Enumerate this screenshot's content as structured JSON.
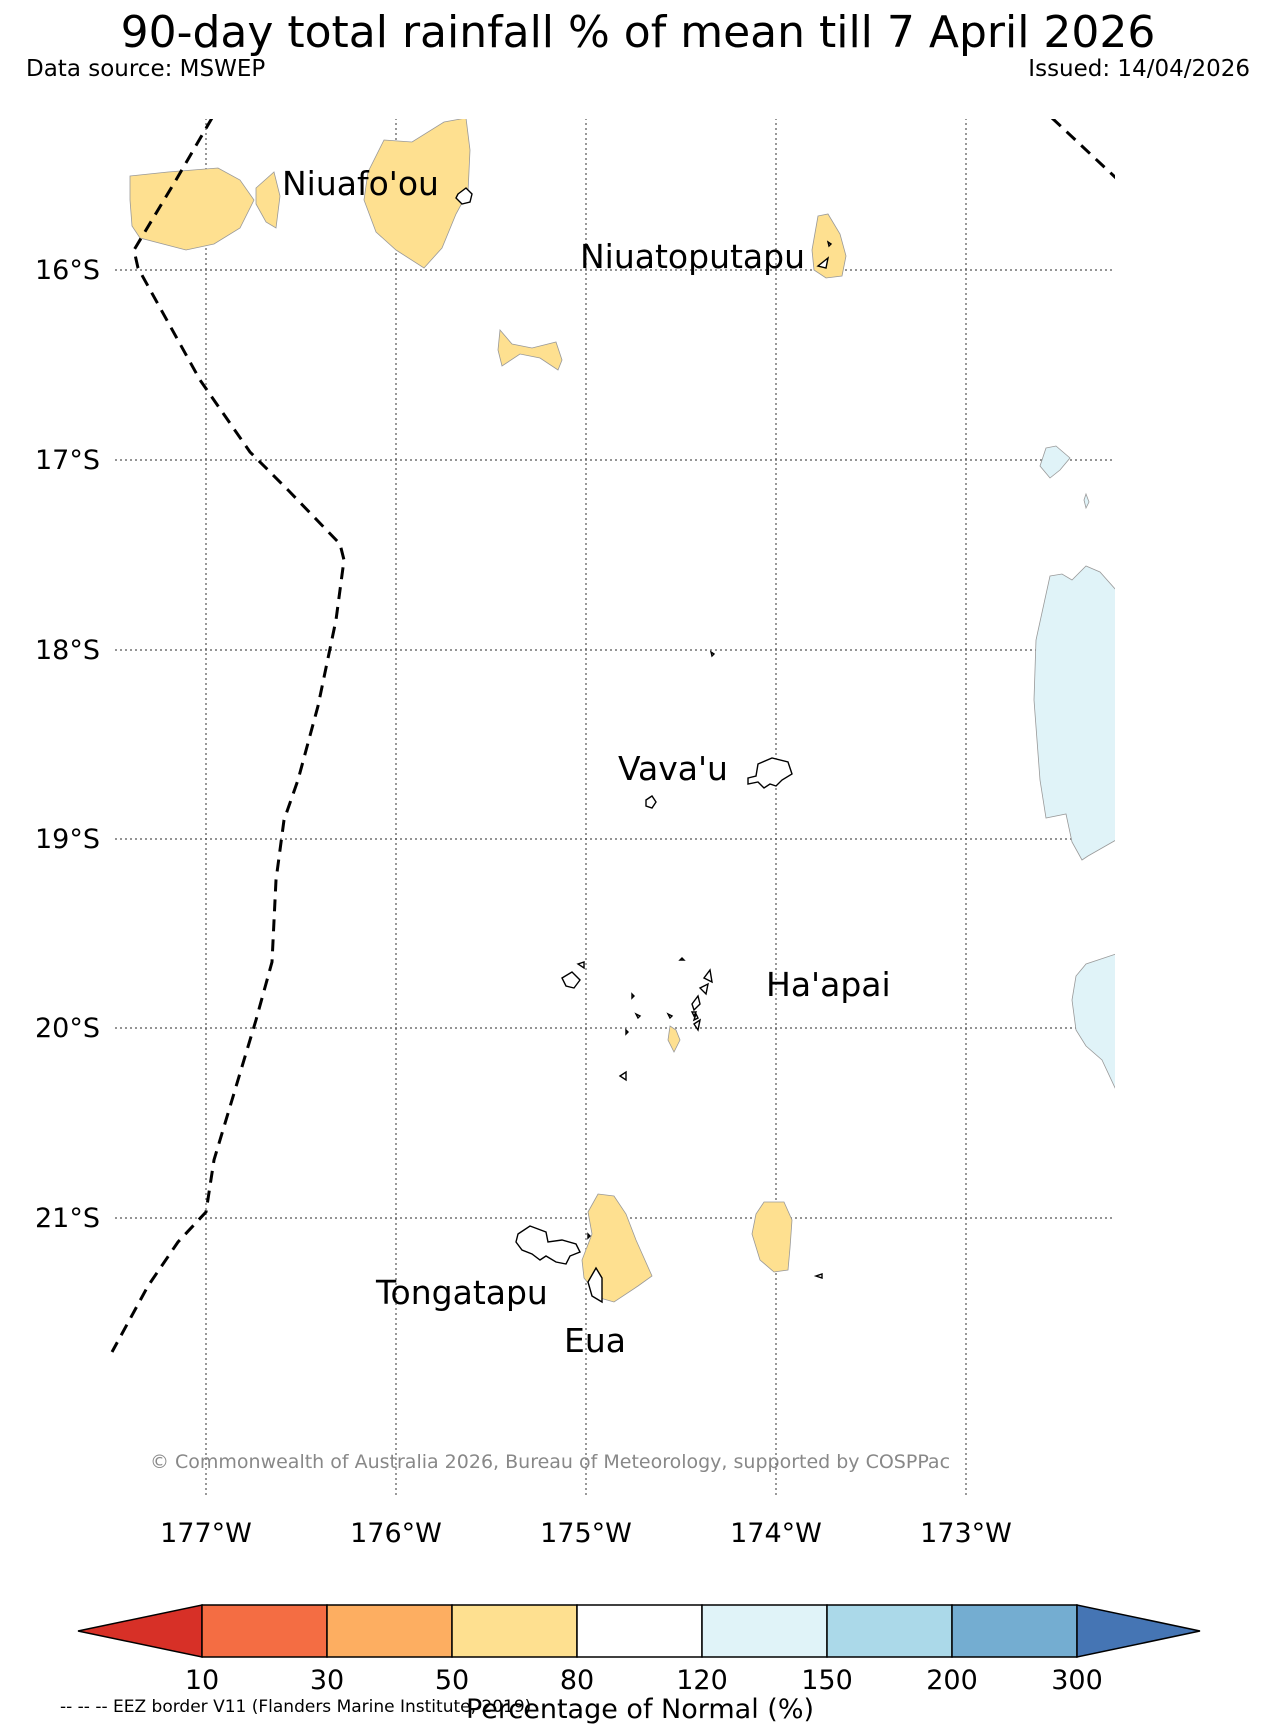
{
  "header": {
    "title": "90-day total rainfall % of mean till 7 April 2026",
    "data_source": "Data source: MSWEP",
    "issued": "Issued: 14/04/2026"
  },
  "map": {
    "labels": {
      "niuafoou": "Niuafo'ou",
      "niuatoputapu": "Niuatoputapu",
      "vavau": "Vava'u",
      "haapai": "Ha'apai",
      "tongatapu": "Tongatapu",
      "eua": "Eua"
    },
    "lat_ticks": [
      "16°S",
      "17°S",
      "18°S",
      "19°S",
      "20°S",
      "21°S"
    ],
    "lon_ticks": [
      "177°W",
      "176°W",
      "175°W",
      "174°W",
      "173°W"
    ],
    "copyright": "© Commonwealth of Australia 2026, Bureau of Meteorology, supported by COSPPac",
    "eez_note": "-- -- -- EEZ border V11 (Flanders Marine Institute, 2019)"
  },
  "colorbar": {
    "label": "Percentage of Normal (%)",
    "ticks": [
      "10",
      "30",
      "50",
      "80",
      "120",
      "150",
      "200",
      "300"
    ],
    "colors": [
      "#d73027",
      "#f46d43",
      "#fdae61",
      "#fee090",
      "#ffffff",
      "#e0f3f8",
      "#abd9e9",
      "#74add1",
      "#4575b4"
    ]
  },
  "colors": {
    "dry_fill": "#fee090",
    "wet_fill": "#e0f3f8"
  }
}
